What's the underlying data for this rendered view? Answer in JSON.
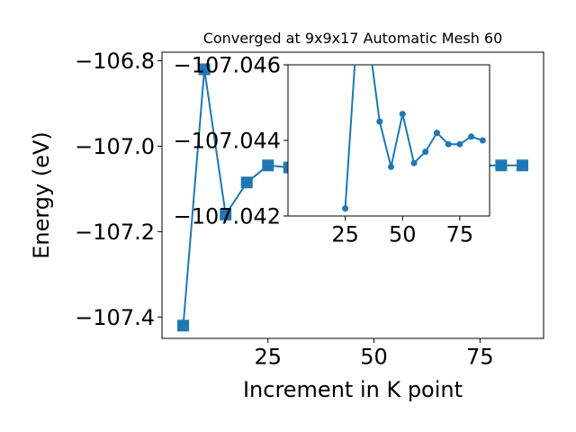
{
  "chart_data": [
    {
      "type": "line",
      "title": "Converged at 9x9x17 Automatic Mesh 60",
      "xlabel": "Increment in K point",
      "ylabel": "Energy (eV)",
      "xlim": [
        0,
        90
      ],
      "ylim": [
        -107.45,
        -106.78
      ],
      "xticks": [
        "25",
        "50",
        "75"
      ],
      "yticks": [
        "−106.8",
        "−107.0",
        "−107.2",
        "−107.4"
      ],
      "marker": "square",
      "color": "#1f77b4",
      "series": [
        {
          "x": [
            5,
            10,
            15,
            20,
            25,
            30,
            80,
            85
          ],
          "values": [
            -107.42,
            -106.82,
            -107.16,
            -107.085,
            -107.045,
            -107.05,
            -107.045,
            -107.045
          ]
        }
      ]
    },
    {
      "type": "line",
      "title": "",
      "xlabel": "",
      "ylabel": "",
      "xlim": [
        0,
        88
      ],
      "ylim": [
        -107.042,
        -107.046
      ],
      "xticks": [
        "25",
        "50",
        "75"
      ],
      "yticks": [
        "−107.046",
        "−107.044",
        "−107.042"
      ],
      "marker": "circle",
      "color": "#1f77b4",
      "series": [
        {
          "x": [
            25,
            30,
            35,
            40,
            45,
            50,
            55,
            60,
            65,
            70,
            75,
            80,
            85
          ],
          "values": [
            -107.0422,
            -107.0468,
            -107.0468,
            -107.0445,
            -107.0433,
            -107.0447,
            -107.0434,
            -107.0437,
            -107.0442,
            -107.0439,
            -107.0439,
            -107.0441,
            -107.044
          ]
        }
      ]
    }
  ]
}
